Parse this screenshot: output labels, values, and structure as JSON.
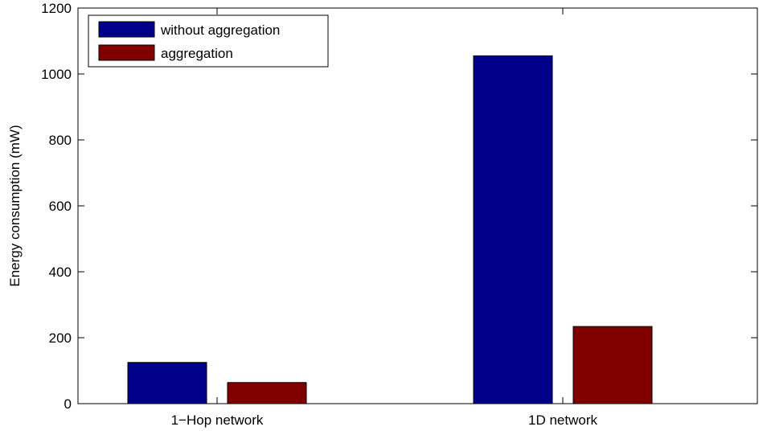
{
  "chart_data": {
    "type": "bar",
    "title": "",
    "xlabel": "",
    "ylabel": "Energy consumption (mW)",
    "categories": [
      "1−Hop network",
      "1D network"
    ],
    "series": [
      {
        "name": "without aggregation",
        "color": "#00008b",
        "values": [
          125,
          1055
        ]
      },
      {
        "name": "aggregation",
        "color": "#800000",
        "values": [
          64,
          234
        ]
      }
    ],
    "ylim": [
      0,
      1200
    ],
    "yticks": [
      0,
      200,
      400,
      600,
      800,
      1000,
      1200
    ],
    "grid": false,
    "legend": "top-left"
  }
}
